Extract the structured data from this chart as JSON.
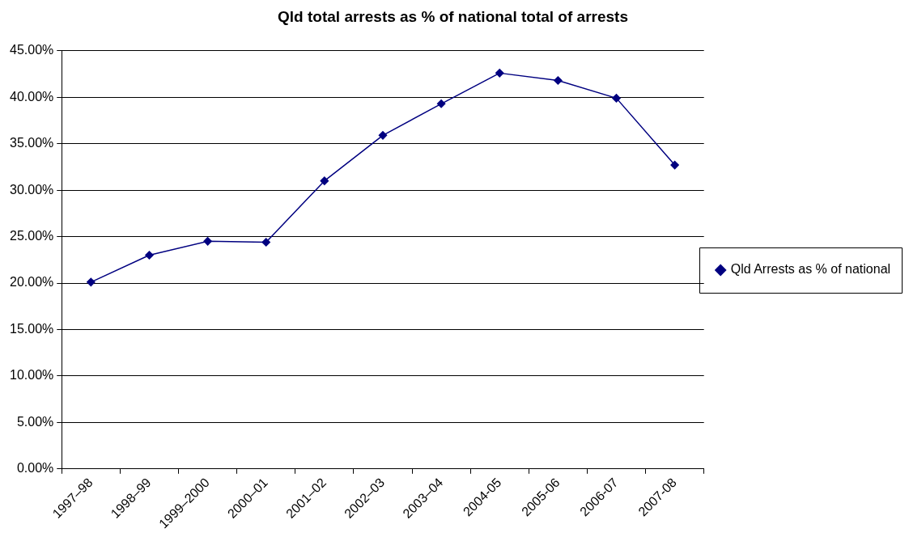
{
  "chart_data": {
    "type": "line",
    "title": "Qld total arrests as % of national total of arrests",
    "categories": [
      "1997–98",
      "1998–99",
      "1999–2000",
      "2000–01",
      "2001–02",
      "2002–03",
      "2003–04",
      "2004-05",
      "2005-06",
      "2006-07",
      "2007-08"
    ],
    "series": [
      {
        "name": "Qld Arrests as % of national",
        "color": "#000080",
        "values": [
          20.1,
          23.0,
          24.5,
          24.4,
          31.0,
          35.9,
          39.3,
          42.6,
          41.8,
          39.9,
          32.7
        ]
      }
    ],
    "ylim": [
      0,
      45
    ],
    "yticks": [
      {
        "value": 0,
        "label": "0.00%"
      },
      {
        "value": 5,
        "label": "5.00%"
      },
      {
        "value": 10,
        "label": "10.00%"
      },
      {
        "value": 15,
        "label": "15.00%"
      },
      {
        "value": 20,
        "label": "20.00%"
      },
      {
        "value": 25,
        "label": "25.00%"
      },
      {
        "value": 30,
        "label": "30.00%"
      },
      {
        "value": 35,
        "label": "35.00%"
      },
      {
        "value": 40,
        "label": "40.00%"
      },
      {
        "value": 45,
        "label": "45.00%"
      }
    ],
    "grid": "y",
    "legend": "right",
    "marker": "diamond"
  }
}
